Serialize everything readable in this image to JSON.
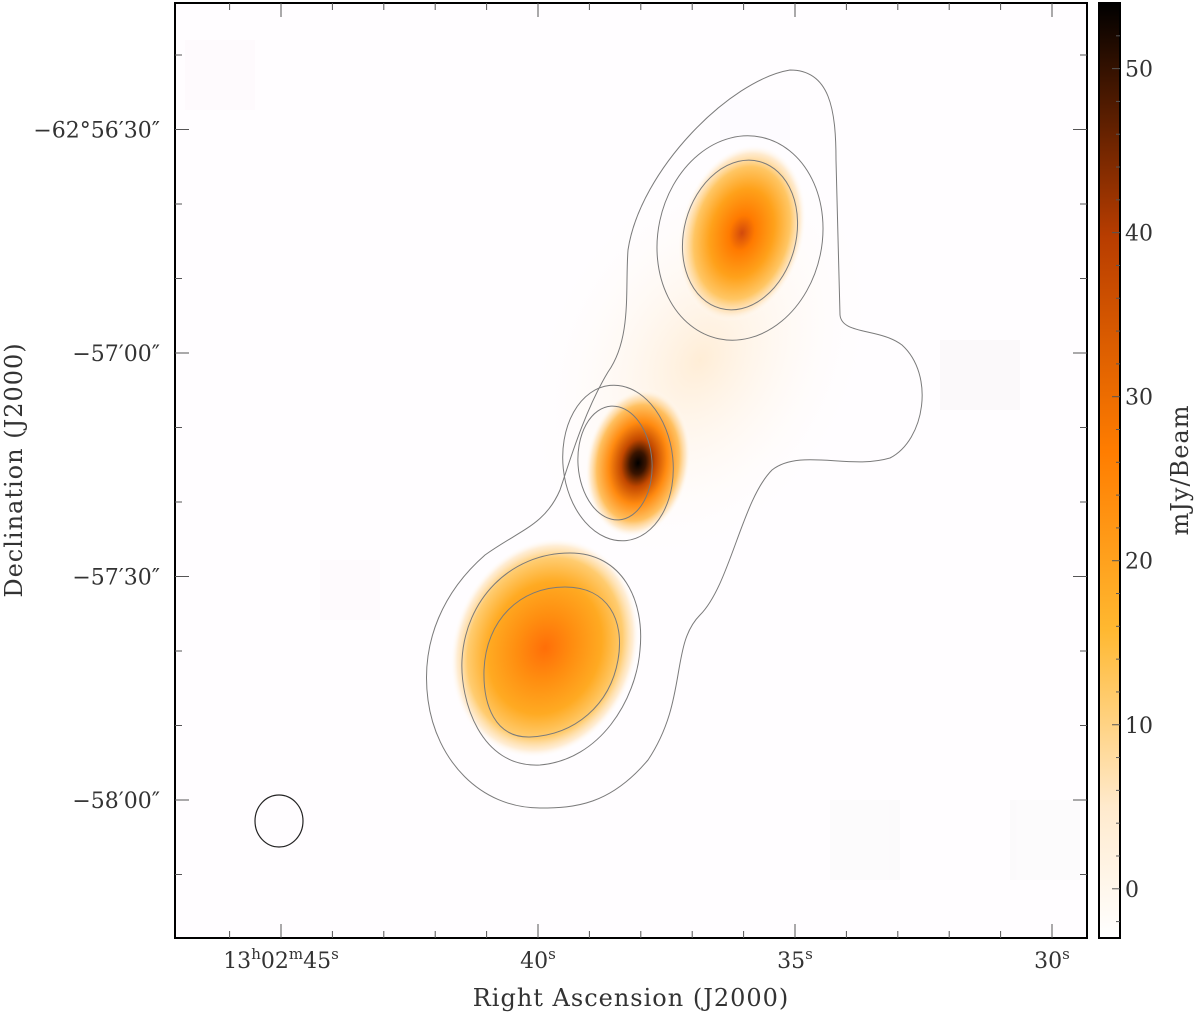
{
  "chart_data": {
    "type": "heatmap",
    "title": "",
    "xlabel": "Right Ascension (J2000)",
    "ylabel": "Declination (J2000)",
    "colorbar_label": "mJy/Beam",
    "x_ticks": [
      {
        "value": 45,
        "parts": [
          [
            "13",
            ""
          ],
          [
            "h",
            "sup"
          ],
          [
            "02",
            ""
          ],
          [
            "m",
            "sup"
          ],
          [
            "45",
            ""
          ],
          [
            "s",
            "sup"
          ]
        ]
      },
      {
        "value": 40,
        "parts": [
          [
            "40",
            ""
          ],
          [
            "s",
            "sup"
          ]
        ]
      },
      {
        "value": 35,
        "parts": [
          [
            "35",
            ""
          ],
          [
            "s",
            "sup"
          ]
        ]
      },
      {
        "value": 30,
        "parts": [
          [
            "30",
            ""
          ],
          [
            "s",
            "sup"
          ]
        ]
      }
    ],
    "y_ticks": [
      {
        "value": 30,
        "label": "−62°56′30″"
      },
      {
        "value": 0,
        "label": "−57′00″"
      },
      {
        "value": -30,
        "label": "−57′30″"
      },
      {
        "value": -60,
        "label": "−58′00″"
      }
    ],
    "colorbar": {
      "range": [
        -3,
        54
      ],
      "ticks": [
        0,
        10,
        20,
        30,
        40,
        50
      ],
      "colormap": [
        "#ffffff",
        "#ffe6c2",
        "#ffb62e",
        "#ff7d00",
        "#b83d00",
        "#000000"
      ]
    },
    "sources": [
      {
        "ra_s": 35.9,
        "dec_arcsec": 18.9,
        "peak_mjy": 38
      },
      {
        "ra_s": 38.1,
        "dec_arcsec": -15.5,
        "peak_mjy": 54
      },
      {
        "ra_s": 40.0,
        "dec_arcsec": -38.6,
        "peak_mjy": 25
      }
    ],
    "contours": 3,
    "beam": "ellipse"
  }
}
